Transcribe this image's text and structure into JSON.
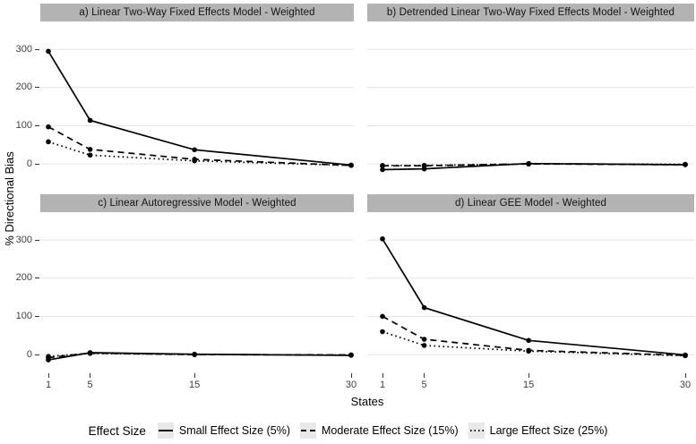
{
  "figure": {
    "y_axis_label": "% Directional Bias",
    "x_axis_label": "States",
    "colors": {
      "strip_fill": "#b3b3b3",
      "strip_text": "#141414",
      "grid": "#e4e4e4",
      "line": "#000000",
      "tick": "#333333",
      "legend_key_fill": "#e8e8e8",
      "background": "#ffffff"
    }
  },
  "legend": {
    "title": "Effect Size",
    "items": [
      {
        "label": "Small Effect Size (5%)",
        "linetype": "solid"
      },
      {
        "label": "Moderate Effect Size (15%)",
        "linetype": "dashed"
      },
      {
        "label": "Large Effect Size (25%)",
        "linetype": "dotted"
      }
    ]
  },
  "chart_data": {
    "type": "line",
    "x": [
      1,
      5,
      15,
      30
    ],
    "xticks": [
      1,
      5,
      15,
      30
    ],
    "yticks": [
      0,
      100,
      200,
      300
    ],
    "ylim": [
      -49,
      373
    ],
    "xlabel": "States",
    "ylabel": "% Directional Bias",
    "grid": "horizontal-major-only",
    "legend_position": "bottom",
    "panels": [
      {
        "id": "a",
        "title": "a) Linear Two-Way Fixed Effects Model - Weighted",
        "series": [
          {
            "name": "Small Effect Size (5%)",
            "linetype": "solid",
            "values": [
              295,
              114,
              37,
              -3
            ]
          },
          {
            "name": "Moderate Effect Size (15%)",
            "linetype": "dashed",
            "values": [
              97,
              38,
              12,
              -4
            ]
          },
          {
            "name": "Large Effect Size (25%)",
            "linetype": "dotted",
            "values": [
              58,
              23,
              8,
              -4
            ]
          }
        ]
      },
      {
        "id": "b",
        "title": "b) Detrended Linear Two-Way Fixed Effects Model - Weighted",
        "series": [
          {
            "name": "Small Effect Size (5%)",
            "linetype": "solid",
            "values": [
              -15,
              -13,
              1,
              -2
            ]
          },
          {
            "name": "Moderate Effect Size (15%)",
            "linetype": "dashed",
            "values": [
              -5,
              -5,
              0,
              -2
            ]
          },
          {
            "name": "Large Effect Size (25%)",
            "linetype": "dotted",
            "values": [
              -4,
              -4,
              0,
              -1
            ]
          }
        ]
      },
      {
        "id": "c",
        "title": "c) Linear Autoregressive Model - Weighted",
        "series": [
          {
            "name": "Small Effect Size (5%)",
            "linetype": "solid",
            "values": [
              -14,
              5,
              1,
              -2
            ]
          },
          {
            "name": "Moderate Effect Size (15%)",
            "linetype": "dashed",
            "values": [
              -8,
              4,
              0,
              -1
            ]
          },
          {
            "name": "Large Effect Size (25%)",
            "linetype": "dotted",
            "values": [
              -5,
              3,
              0,
              -1
            ]
          }
        ]
      },
      {
        "id": "d",
        "title": "d) Linear GEE Model - Weighted",
        "series": [
          {
            "name": "Small Effect Size (5%)",
            "linetype": "solid",
            "values": [
              303,
              123,
              37,
              -1
            ]
          },
          {
            "name": "Moderate Effect Size (15%)",
            "linetype": "dashed",
            "values": [
              100,
              40,
              11,
              -2
            ]
          },
          {
            "name": "Large Effect Size (25%)",
            "linetype": "dotted",
            "values": [
              60,
              24,
              9,
              -3
            ]
          }
        ]
      }
    ]
  }
}
